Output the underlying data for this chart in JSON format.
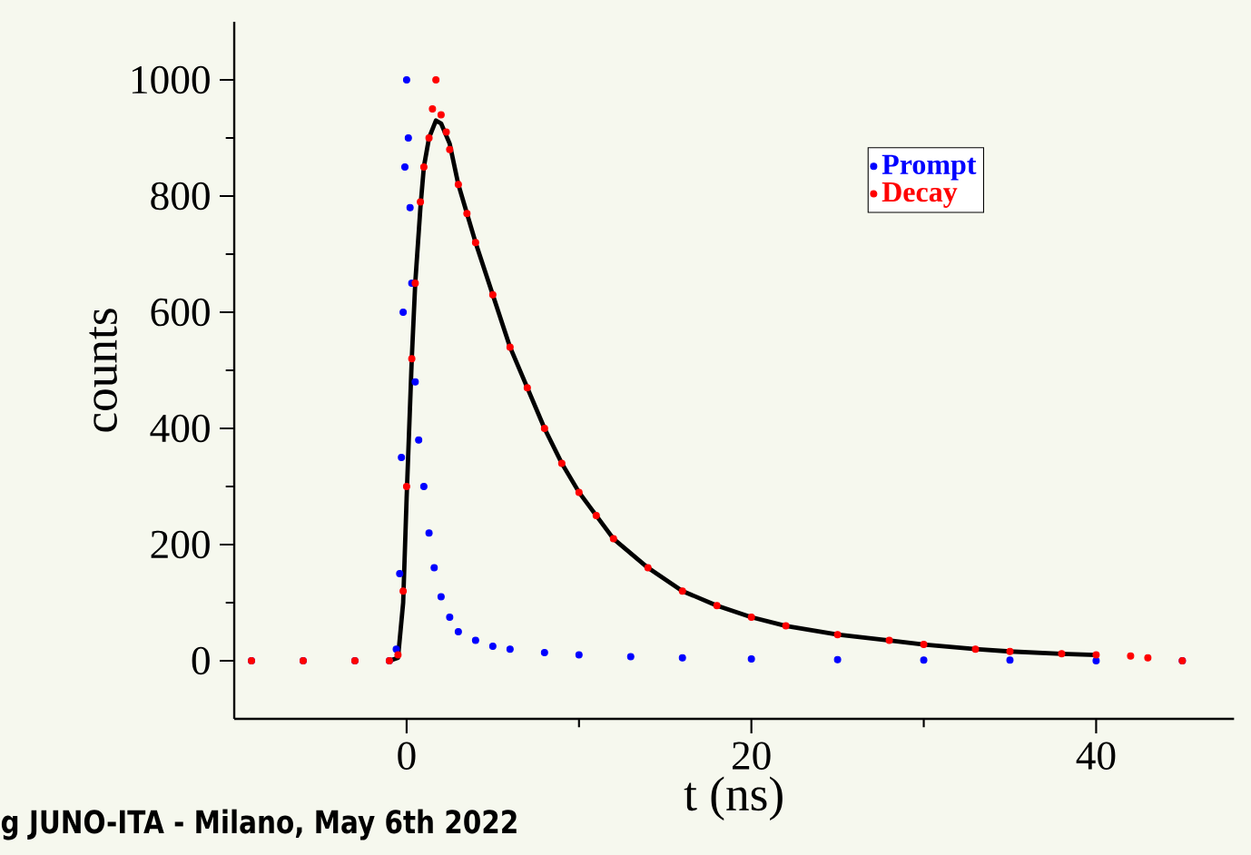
{
  "chart_data": {
    "type": "scatter",
    "xlabel": "t (ns)",
    "ylabel": "counts",
    "xlim": [
      -10,
      48
    ],
    "ylim": [
      -100,
      1100
    ],
    "xticks": [
      0,
      20,
      40
    ],
    "yticks": [
      0,
      200,
      400,
      600,
      800,
      1000
    ],
    "grid": false,
    "legend": "top right",
    "marker": "circle",
    "annotations": [
      "g JUNO-ITA - Milano, May 6th 2022"
    ],
    "series": [
      {
        "name": "Prompt",
        "color": "#0000ff",
        "x": [
          -9,
          -6,
          -3,
          -1,
          -0.6,
          -0.4,
          -0.3,
          -0.2,
          -0.1,
          0,
          0.1,
          0.2,
          0.3,
          0.5,
          0.7,
          1,
          1.3,
          1.6,
          2,
          2.5,
          3,
          4,
          5,
          6,
          8,
          10,
          13,
          16,
          20,
          25,
          30,
          35,
          40,
          45
        ],
        "values": [
          0,
          0,
          0,
          0,
          20,
          150,
          350,
          600,
          850,
          1000,
          900,
          780,
          650,
          480,
          380,
          300,
          220,
          160,
          110,
          75,
          50,
          35,
          25,
          20,
          14,
          10,
          7,
          5,
          3,
          2,
          1,
          1,
          0,
          0
        ]
      },
      {
        "name": "Decay",
        "color": "#ff0000",
        "x": [
          -9,
          -6,
          -3,
          -1,
          -0.5,
          -0.2,
          0,
          0.3,
          0.5,
          0.8,
          1,
          1.3,
          1.5,
          1.7,
          2,
          2.3,
          2.5,
          3,
          3.5,
          4,
          5,
          6,
          7,
          8,
          9,
          10,
          11,
          12,
          14,
          16,
          18,
          20,
          22,
          25,
          28,
          30,
          33,
          35,
          38,
          40,
          42,
          43,
          45
        ],
        "values": [
          0,
          0,
          0,
          0,
          10,
          120,
          300,
          520,
          650,
          790,
          850,
          900,
          950,
          1000,
          940,
          910,
          880,
          820,
          770,
          720,
          630,
          540,
          470,
          400,
          340,
          290,
          250,
          210,
          160,
          120,
          95,
          75,
          60,
          45,
          35,
          28,
          20,
          16,
          12,
          10,
          8,
          5,
          0
        ]
      },
      {
        "type": "line",
        "marker": "none",
        "color": "#000000",
        "x": [
          -1,
          -0.5,
          -0.2,
          0,
          0.3,
          0.5,
          0.8,
          1,
          1.3,
          1.7,
          2,
          2.5,
          3,
          4,
          5,
          6,
          7,
          8,
          9,
          10,
          12,
          14,
          16,
          18,
          20,
          22,
          25,
          28,
          30,
          33,
          35,
          38,
          40
        ],
        "values": [
          0,
          5,
          100,
          280,
          520,
          650,
          780,
          850,
          900,
          930,
          925,
          890,
          820,
          720,
          630,
          540,
          470,
          400,
          340,
          290,
          210,
          160,
          120,
          95,
          75,
          60,
          45,
          35,
          28,
          20,
          16,
          12,
          10
        ]
      }
    ]
  }
}
